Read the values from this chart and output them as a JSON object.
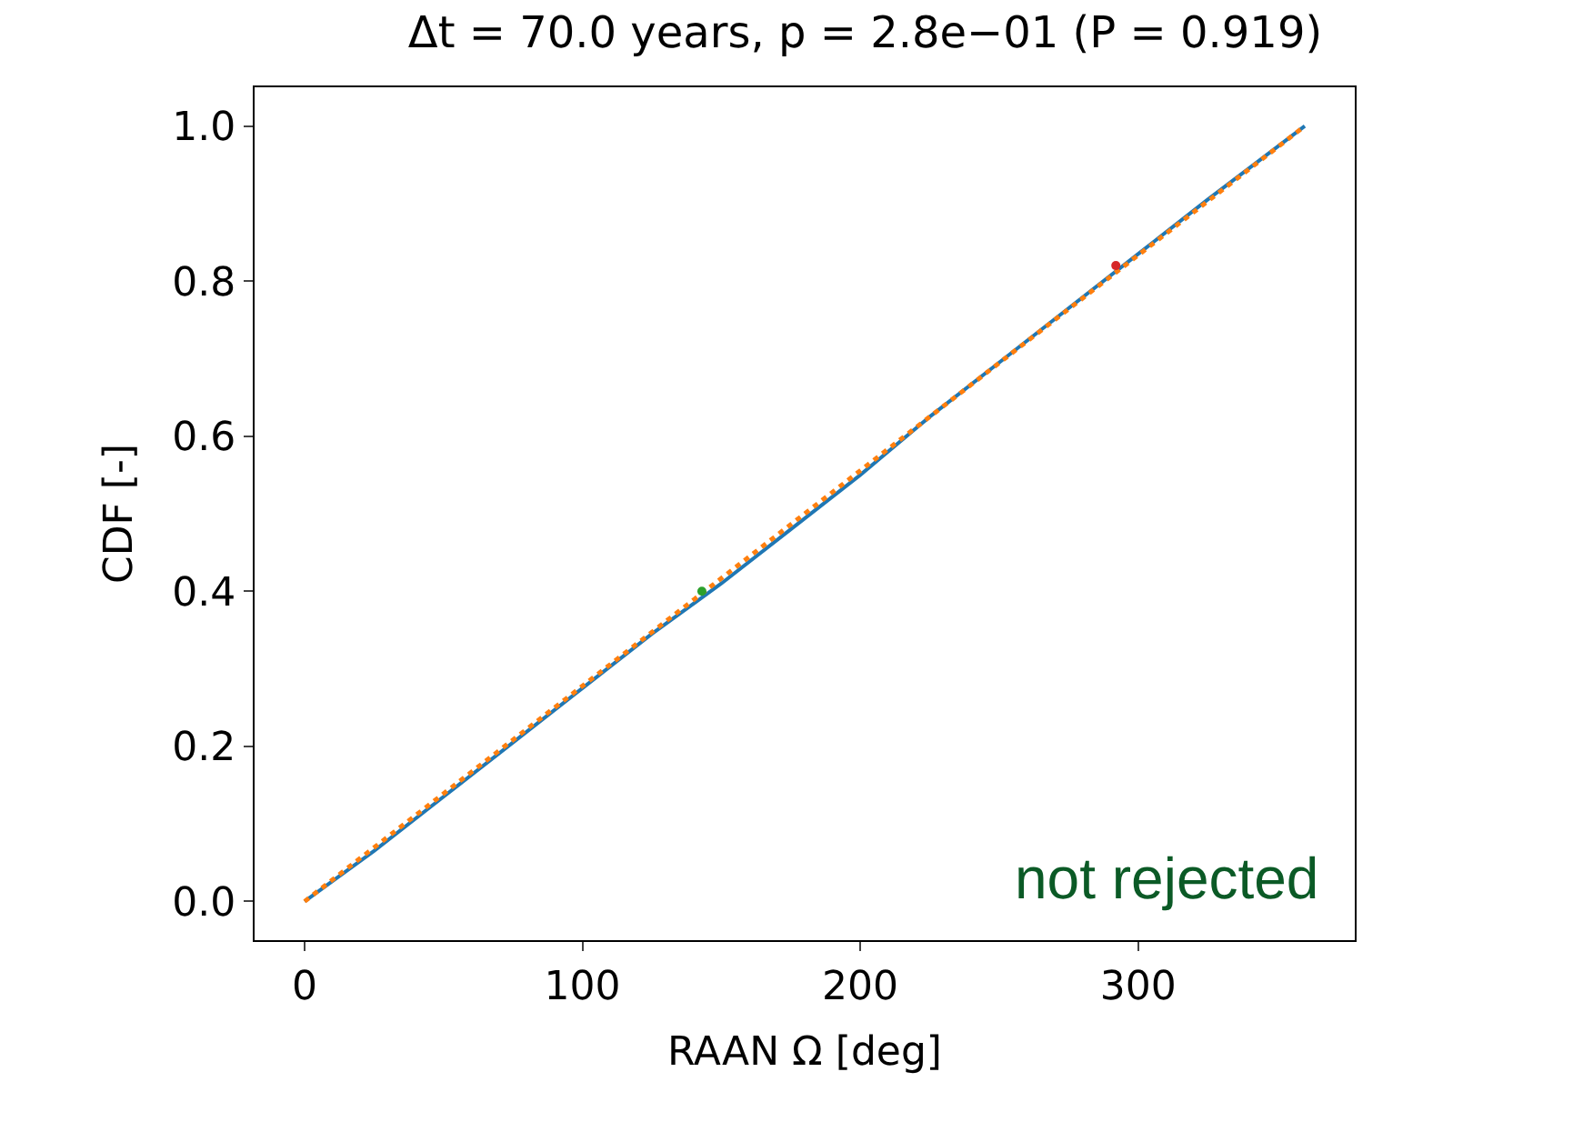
{
  "chart_data": {
    "type": "line",
    "title": "Δt = 70.0 years, p = 2.8e−01 (P = 0.919)",
    "xlabel": "RAAN Ω [deg]",
    "ylabel": "CDF [-]",
    "xlim": [
      -18,
      378
    ],
    "ylim": [
      -0.05,
      1.05
    ],
    "xticks": [
      0,
      100,
      200,
      300
    ],
    "yticks": [
      {
        "value": 0,
        "label": "0.0"
      },
      {
        "value": 0.2,
        "label": "0.2"
      },
      {
        "value": 0.4,
        "label": "0.4"
      },
      {
        "value": 0.6,
        "label": "0.6"
      },
      {
        "value": 0.8,
        "label": "0.8"
      },
      {
        "value": 1,
        "label": "1.0"
      }
    ],
    "series": [
      {
        "color": "#1f77b4",
        "line_style": "solid",
        "x": [
          0,
          25,
          50,
          75,
          100,
          125,
          150,
          175,
          200,
          225,
          250,
          275,
          300,
          325,
          360
        ],
        "values": [
          0,
          0.065,
          0.135,
          0.205,
          0.275,
          0.345,
          0.41,
          0.48,
          0.55,
          0.625,
          0.695,
          0.765,
          0.835,
          0.905,
          1.0
        ]
      },
      {
        "color": "#ff7f0e",
        "line_style": "dotted",
        "x": [
          0,
          360
        ],
        "values": [
          0,
          1.0
        ]
      },
      {
        "type": "scatter",
        "color": "#2ca02c",
        "marker": "circle",
        "x": [
          143
        ],
        "values": [
          0.4
        ]
      },
      {
        "type": "scatter",
        "color": "#d62728",
        "marker": "circle",
        "x": [
          292
        ],
        "values": [
          0.82
        ]
      }
    ],
    "annotations": [
      "not rejected"
    ]
  }
}
